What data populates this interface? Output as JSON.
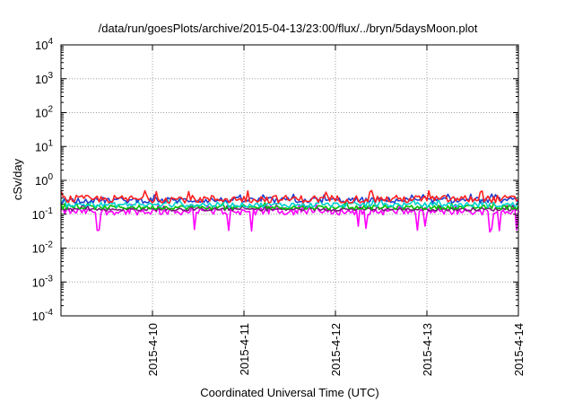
{
  "chart_data": {
    "type": "line",
    "title": "/data/run/goesPlots/archive/2015-04-13/23:00/flux/../bryn/5daysMoon.plot",
    "xlabel": "Coordinated Universal Time (UTC)",
    "ylabel": "cSv/day",
    "yscale": "log",
    "ylim": [
      0.0001,
      10000
    ],
    "xlim": [
      "2015-04-09T00:00",
      "2015-04-14T00:00"
    ],
    "x_ticks": [
      "2015-4-10",
      "2015-4-11",
      "2015-4-12",
      "2015-4-13",
      "2015-4-14"
    ],
    "y_ticks": [
      {
        "base": "10",
        "exp": "-4"
      },
      {
        "base": "10",
        "exp": "-3"
      },
      {
        "base": "10",
        "exp": "-2"
      },
      {
        "base": "10",
        "exp": "-1"
      },
      {
        "base": "10",
        "exp": "0"
      },
      {
        "base": "10",
        "exp": "1"
      },
      {
        "base": "10",
        "exp": "2"
      },
      {
        "base": "10",
        "exp": "3"
      },
      {
        "base": "10",
        "exp": "4"
      }
    ],
    "grid": true,
    "legend": "none",
    "series": [
      {
        "color": "#ff00ff",
        "typical": 0.12,
        "range": [
          0.03,
          0.2
        ]
      },
      {
        "color": "#7a1a7a",
        "typical": 0.14,
        "range": [
          0.1,
          0.18
        ]
      },
      {
        "color": "#00c000",
        "typical": 0.16,
        "range": [
          0.12,
          0.22
        ]
      },
      {
        "color": "#00d0d0",
        "typical": 0.19,
        "range": [
          0.14,
          0.28
        ]
      },
      {
        "color": "#1f3fd0",
        "typical": 0.26,
        "range": [
          0.18,
          0.4
        ]
      },
      {
        "color": "#ff2020",
        "typical": 0.28,
        "range": [
          0.2,
          0.5
        ]
      }
    ]
  }
}
